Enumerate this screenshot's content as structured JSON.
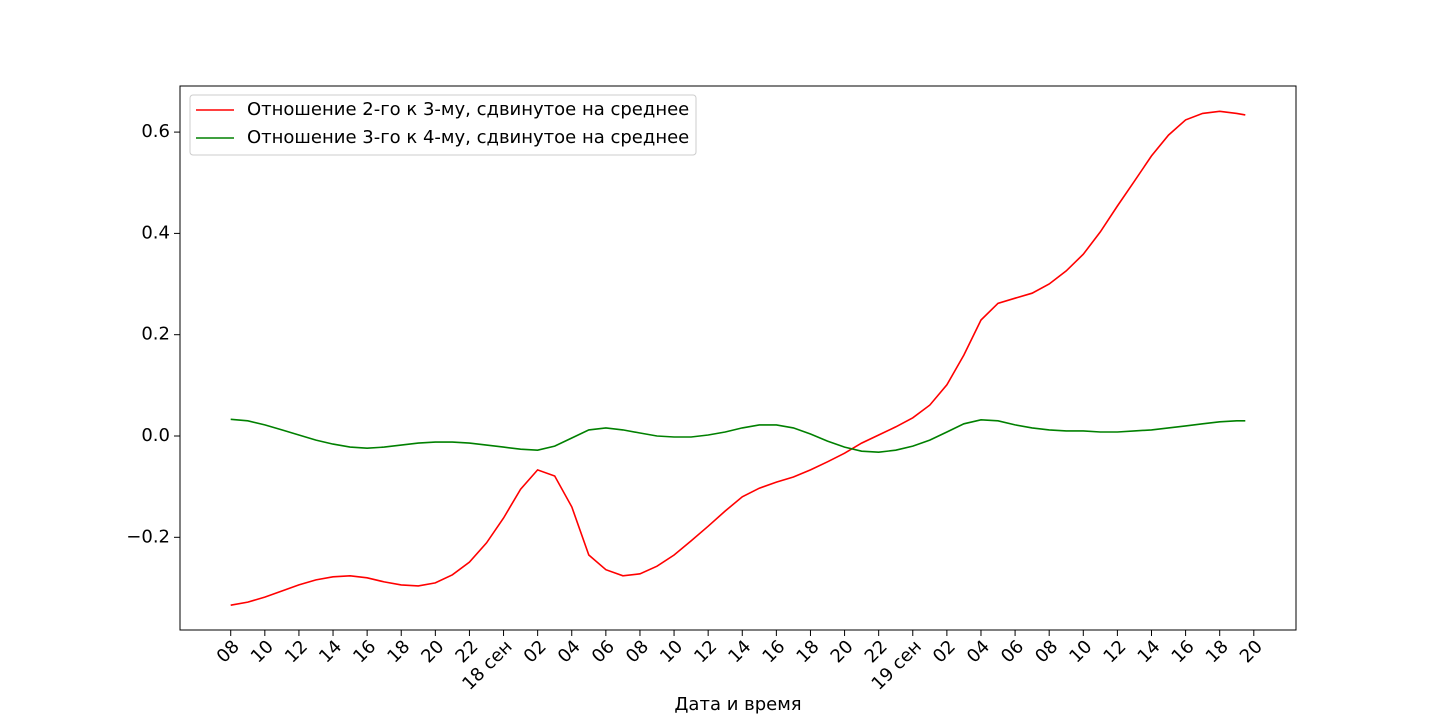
{
  "chart_data": {
    "type": "line",
    "xlabel": "Дата и время",
    "x": [
      0,
      1,
      2,
      3,
      4,
      5,
      6,
      7,
      8,
      9,
      10,
      11,
      12,
      13,
      14,
      15,
      16,
      17,
      18,
      19,
      20,
      21,
      22,
      23,
      24,
      25,
      26,
      27,
      28,
      29,
      30,
      31,
      32,
      33,
      34,
      35,
      36,
      37,
      38,
      39,
      40,
      41,
      42,
      43,
      44,
      45,
      46,
      47,
      48,
      49,
      50,
      51,
      52,
      53,
      54,
      55,
      56,
      57,
      58,
      59,
      59.5
    ],
    "series": [
      {
        "name": "Отношение 2-го к 3-му, сдвинутое на среднее",
        "color": "#ff0000",
        "values": [
          -0.334,
          -0.328,
          -0.318,
          -0.306,
          -0.294,
          -0.284,
          -0.278,
          -0.276,
          -0.28,
          -0.288,
          -0.294,
          -0.296,
          -0.29,
          -0.274,
          -0.249,
          -0.211,
          -0.162,
          -0.105,
          -0.067,
          -0.079,
          -0.14,
          -0.235,
          -0.264,
          -0.276,
          -0.272,
          -0.257,
          -0.235,
          -0.207,
          -0.178,
          -0.148,
          -0.12,
          -0.103,
          -0.091,
          -0.081,
          -0.067,
          -0.051,
          -0.034,
          -0.014,
          0.002,
          0.018,
          0.036,
          0.061,
          0.101,
          0.16,
          0.229,
          0.262,
          0.272,
          0.282,
          0.3,
          0.326,
          0.359,
          0.403,
          0.454,
          0.503,
          0.553,
          0.594,
          0.624,
          0.637,
          0.641,
          0.637,
          0.634
        ]
      },
      {
        "name": "Отношение 3-го к 4-му, сдвинутое на среднее",
        "color": "#008000",
        "values": [
          0.033,
          0.03,
          0.022,
          0.012,
          0.002,
          -0.008,
          -0.016,
          -0.022,
          -0.024,
          -0.022,
          -0.018,
          -0.014,
          -0.012,
          -0.012,
          -0.014,
          -0.018,
          -0.022,
          -0.026,
          -0.028,
          -0.02,
          -0.004,
          0.012,
          0.016,
          0.012,
          0.006,
          0,
          -0.002,
          -0.002,
          0.002,
          0.008,
          0.016,
          0.022,
          0.022,
          0.016,
          0.004,
          -0.01,
          -0.022,
          -0.03,
          -0.032,
          -0.028,
          -0.02,
          -0.008,
          0.008,
          0.024,
          0.032,
          0.03,
          0.022,
          0.016,
          0.012,
          0.01,
          0.01,
          0.008,
          0.008,
          0.01,
          0.012,
          0.016,
          0.02,
          0.024,
          0.028,
          0.03,
          0.03
        ]
      }
    ],
    "xlim": [
      -2.975,
      62.475
    ],
    "ylim": [
      -0.383,
      0.691
    ],
    "xticks": [
      {
        "value": 0,
        "label": "08"
      },
      {
        "value": 2,
        "label": "10"
      },
      {
        "value": 4,
        "label": "12"
      },
      {
        "value": 6,
        "label": "14"
      },
      {
        "value": 8,
        "label": "16"
      },
      {
        "value": 10,
        "label": "18"
      },
      {
        "value": 12,
        "label": "20"
      },
      {
        "value": 14,
        "label": "22"
      },
      {
        "value": 16,
        "label": "18 сен"
      },
      {
        "value": 18,
        "label": "02"
      },
      {
        "value": 20,
        "label": "04"
      },
      {
        "value": 22,
        "label": "06"
      },
      {
        "value": 24,
        "label": "08"
      },
      {
        "value": 26,
        "label": "10"
      },
      {
        "value": 28,
        "label": "12"
      },
      {
        "value": 30,
        "label": "14"
      },
      {
        "value": 32,
        "label": "16"
      },
      {
        "value": 34,
        "label": "18"
      },
      {
        "value": 36,
        "label": "20"
      },
      {
        "value": 38,
        "label": "22"
      },
      {
        "value": 40,
        "label": "19 сен"
      },
      {
        "value": 42,
        "label": "02"
      },
      {
        "value": 44,
        "label": "04"
      },
      {
        "value": 46,
        "label": "06"
      },
      {
        "value": 48,
        "label": "08"
      },
      {
        "value": 50,
        "label": "10"
      },
      {
        "value": 52,
        "label": "12"
      },
      {
        "value": 54,
        "label": "14"
      },
      {
        "value": 56,
        "label": "16"
      },
      {
        "value": 58,
        "label": "18"
      },
      {
        "value": 60,
        "label": "20"
      }
    ],
    "yticks": [
      {
        "value": -0.2,
        "label": "−0.2"
      },
      {
        "value": 0,
        "label": "0.0"
      },
      0.2,
      0.4,
      0.6
    ],
    "legend": "upper left"
  }
}
